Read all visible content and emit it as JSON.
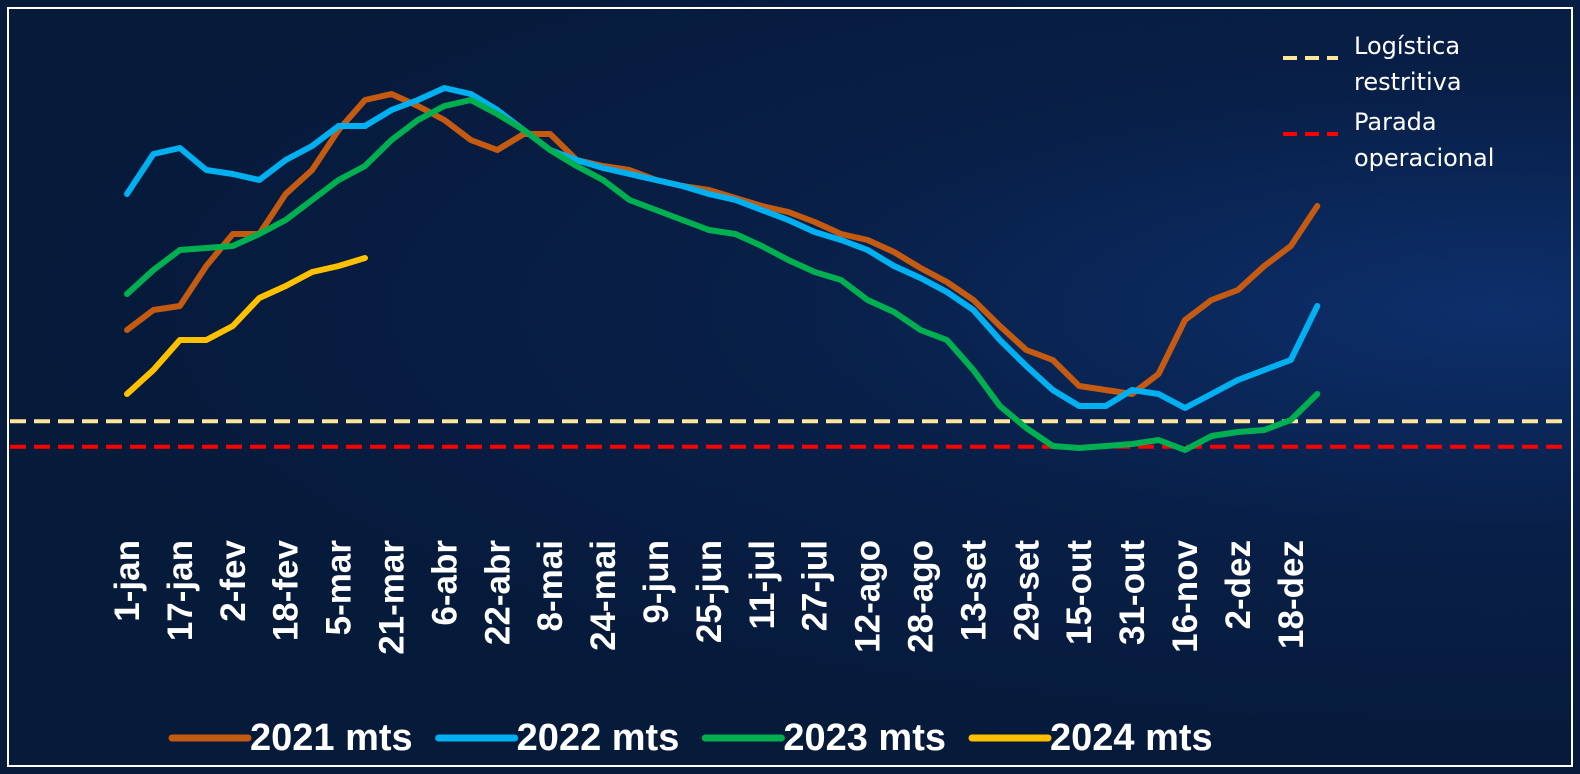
{
  "chart_data": {
    "type": "line",
    "categories": [
      "1-jan",
      null,
      "17-jan",
      null,
      "2-fev",
      null,
      "18-fev",
      null,
      "5-mar",
      null,
      "21-mar",
      null,
      "6-abr",
      null,
      "22-abr",
      null,
      "8-mai",
      null,
      "24-mai",
      null,
      "9-jun",
      null,
      "25-jun",
      null,
      "11-jul",
      null,
      "27-jul",
      null,
      "12-ago",
      null,
      "28-ago",
      null,
      "13-set",
      null,
      "29-set",
      null,
      "15-out",
      null,
      "31-out",
      null,
      "16-nov",
      null,
      "2-dez",
      null,
      "18-dez",
      null
    ],
    "ylim": [
      0,
      100
    ],
    "legend": "bottom",
    "series": [
      {
        "name": "2021 mts",
        "color": "#c55a11",
        "values": [
          35,
          40,
          41,
          51,
          59,
          59,
          69,
          75,
          85,
          92.5,
          94,
          91,
          87.5,
          82.5,
          80,
          84,
          84,
          77.5,
          76,
          75,
          72.5,
          71,
          70,
          68,
          66,
          64.5,
          62,
          59,
          57.5,
          54.5,
          50.5,
          47,
          42.5,
          36,
          30,
          27.5,
          21,
          20,
          19,
          24,
          37.5,
          42.5,
          45,
          51,
          56,
          66
        ]
      },
      {
        "name": "2022 mts",
        "color": "#00b0f0",
        "values": [
          69,
          79,
          80.5,
          75,
          74,
          72.5,
          77.5,
          81,
          86,
          86,
          90,
          92.5,
          95.5,
          94,
          90,
          85,
          80,
          77.5,
          75.5,
          74,
          72.5,
          71,
          69,
          67.5,
          65,
          62.5,
          59.5,
          57.5,
          55,
          51,
          48,
          44.5,
          40,
          32.5,
          26,
          20,
          16,
          16,
          20,
          19,
          15.5,
          19,
          22.5,
          25,
          27.5,
          41
        ]
      },
      {
        "name": "2023 mts",
        "color": "#00b050",
        "values": [
          44,
          50,
          55,
          55.5,
          56,
          59,
          62.5,
          67.5,
          72.5,
          76,
          82.5,
          87.5,
          91,
          92.5,
          89,
          85,
          80,
          76,
          72.5,
          67.5,
          65,
          62.5,
          60,
          59,
          56,
          52.5,
          49.5,
          47.5,
          42.5,
          39.5,
          35,
          32.5,
          25,
          16,
          10.5,
          6,
          5.5,
          6,
          6.5,
          7.5,
          5,
          8.5,
          9.5,
          10,
          12.5,
          19
        ]
      },
      {
        "name": "2024 mts",
        "color": "#ffc000",
        "values": [
          19,
          25,
          32.5,
          32.5,
          36,
          43,
          46,
          49.5,
          51,
          53,
          null,
          null,
          null,
          null,
          null,
          null,
          null,
          null,
          null,
          null,
          null,
          null,
          null,
          null,
          null,
          null,
          null,
          null,
          null,
          null,
          null,
          null,
          null,
          null,
          null,
          null,
          null,
          null,
          null,
          null,
          null,
          null,
          null,
          null,
          null,
          null
        ]
      }
    ],
    "reference_lines": [
      {
        "name": "Logística restritiva",
        "value": 12.2,
        "color": "#ffe699"
      },
      {
        "name": "Parada operacional",
        "value": 5.8,
        "color": "#ff0000"
      }
    ]
  }
}
